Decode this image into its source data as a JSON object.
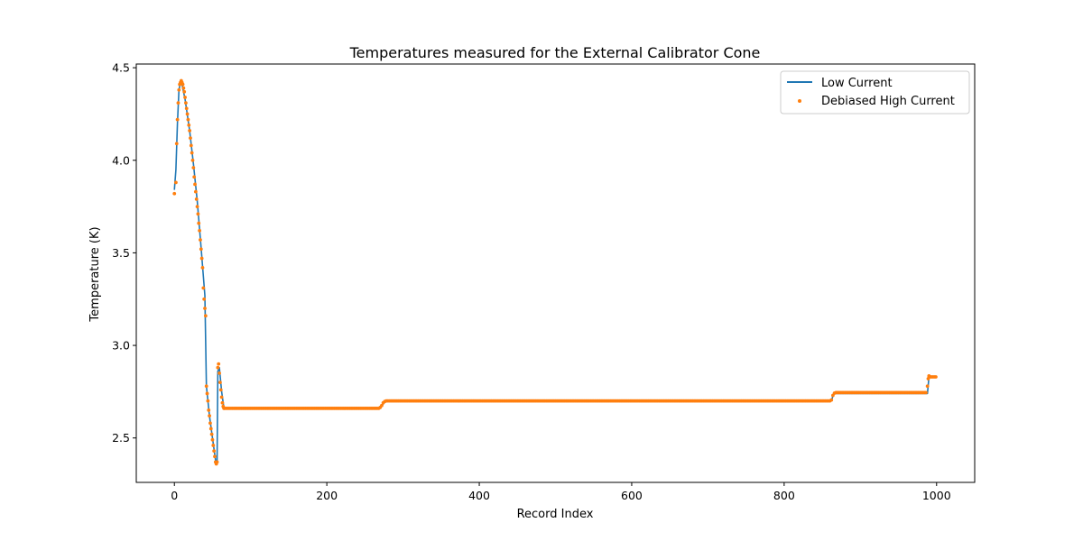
{
  "chart_data": {
    "type": "line",
    "title": "Temperatures measured for the External Calibrator Cone",
    "xlabel": "Record Index",
    "ylabel": "Temperature (K)",
    "xlim": [
      -50,
      1050
    ],
    "ylim": [
      2.26,
      4.52
    ],
    "xticks": [
      0,
      200,
      400,
      600,
      800,
      1000
    ],
    "yticks": [
      2.5,
      3.0,
      3.5,
      4.0,
      4.5
    ],
    "xtick_labels": [
      "0",
      "200",
      "400",
      "600",
      "800",
      "1000"
    ],
    "ytick_labels": [
      "2.5",
      "3.0",
      "3.5",
      "4.0",
      "4.5"
    ],
    "grid": false,
    "legend_position": "top-right",
    "colors": {
      "low_current": "#1f77b4",
      "debiased_high_current": "#ff7f0e"
    },
    "series": [
      {
        "name": "Low Current",
        "style": "line",
        "points": [
          [
            0,
            3.84
          ],
          [
            2,
            3.95
          ],
          [
            4,
            4.2
          ],
          [
            6,
            4.38
          ],
          [
            8,
            4.42
          ],
          [
            10,
            4.41
          ],
          [
            14,
            4.33
          ],
          [
            20,
            4.16
          ],
          [
            25,
            3.98
          ],
          [
            30,
            3.78
          ],
          [
            35,
            3.53
          ],
          [
            40,
            3.27
          ],
          [
            42,
            2.78
          ],
          [
            46,
            2.62
          ],
          [
            50,
            2.5
          ],
          [
            54,
            2.38
          ],
          [
            56,
            2.37
          ],
          [
            57,
            2.86
          ],
          [
            59,
            2.88
          ],
          [
            62,
            2.75
          ],
          [
            65,
            2.66
          ],
          [
            270,
            2.66
          ],
          [
            275,
            2.69
          ],
          [
            280,
            2.7
          ],
          [
            862,
            2.7
          ],
          [
            865,
            2.74
          ],
          [
            988,
            2.74
          ],
          [
            990,
            2.83
          ],
          [
            1000,
            2.83
          ]
        ]
      },
      {
        "name": "Debiased High Current",
        "style": "scatter",
        "points": [
          [
            0,
            3.82
          ],
          [
            2,
            3.88
          ],
          [
            3,
            4.09
          ],
          [
            4,
            4.22
          ],
          [
            5,
            4.31
          ],
          [
            6,
            4.38
          ],
          [
            7,
            4.41
          ],
          [
            8,
            4.42
          ],
          [
            9,
            4.43
          ],
          [
            10,
            4.42
          ],
          [
            11,
            4.41
          ],
          [
            12,
            4.39
          ],
          [
            13,
            4.37
          ],
          [
            14,
            4.34
          ],
          [
            15,
            4.31
          ],
          [
            16,
            4.28
          ],
          [
            17,
            4.25
          ],
          [
            18,
            4.22
          ],
          [
            19,
            4.19
          ],
          [
            20,
            4.16
          ],
          [
            21,
            4.12
          ],
          [
            22,
            4.08
          ],
          [
            23,
            4.04
          ],
          [
            24,
            4.0
          ],
          [
            25,
            3.96
          ],
          [
            26,
            3.91
          ],
          [
            27,
            3.87
          ],
          [
            28,
            3.83
          ],
          [
            29,
            3.79
          ],
          [
            30,
            3.75
          ],
          [
            31,
            3.71
          ],
          [
            32,
            3.66
          ],
          [
            33,
            3.62
          ],
          [
            34,
            3.57
          ],
          [
            35,
            3.52
          ],
          [
            36,
            3.47
          ],
          [
            37,
            3.42
          ],
          [
            38,
            3.31
          ],
          [
            39,
            3.25
          ],
          [
            40,
            3.2
          ],
          [
            41,
            3.16
          ],
          [
            42,
            2.78
          ],
          [
            43,
            2.74
          ],
          [
            44,
            2.7
          ],
          [
            45,
            2.65
          ],
          [
            46,
            2.62
          ],
          [
            47,
            2.58
          ],
          [
            48,
            2.55
          ],
          [
            49,
            2.52
          ],
          [
            50,
            2.49
          ],
          [
            51,
            2.46
          ],
          [
            52,
            2.43
          ],
          [
            53,
            2.4
          ],
          [
            54,
            2.37
          ],
          [
            55,
            2.36
          ],
          [
            56,
            2.37
          ],
          [
            57,
            2.88
          ],
          [
            58,
            2.9
          ],
          [
            59,
            2.85
          ],
          [
            60,
            2.8
          ],
          [
            61,
            2.76
          ],
          [
            62,
            2.72
          ],
          [
            63,
            2.69
          ],
          [
            64,
            2.67
          ],
          [
            65,
            2.66
          ]
        ],
        "plateaus": [
          {
            "x_start": 66,
            "x_end": 268,
            "step": 2,
            "y": 2.66
          },
          {
            "x_start": 280,
            "x_end": 860,
            "step": 2,
            "y": 2.7
          },
          {
            "x_start": 868,
            "x_end": 986,
            "step": 2,
            "y": 2.745
          },
          {
            "x_start": 991,
            "x_end": 999,
            "step": 2,
            "y": 2.83
          }
        ],
        "transitions": [
          [
            270,
            2.665
          ],
          [
            272,
            2.675
          ],
          [
            274,
            2.69
          ],
          [
            276,
            2.697
          ],
          [
            278,
            2.7
          ],
          [
            862,
            2.705
          ],
          [
            864,
            2.73
          ],
          [
            866,
            2.742
          ],
          [
            988,
            2.78
          ],
          [
            989,
            2.82
          ],
          [
            990,
            2.835
          ]
        ]
      }
    ]
  }
}
